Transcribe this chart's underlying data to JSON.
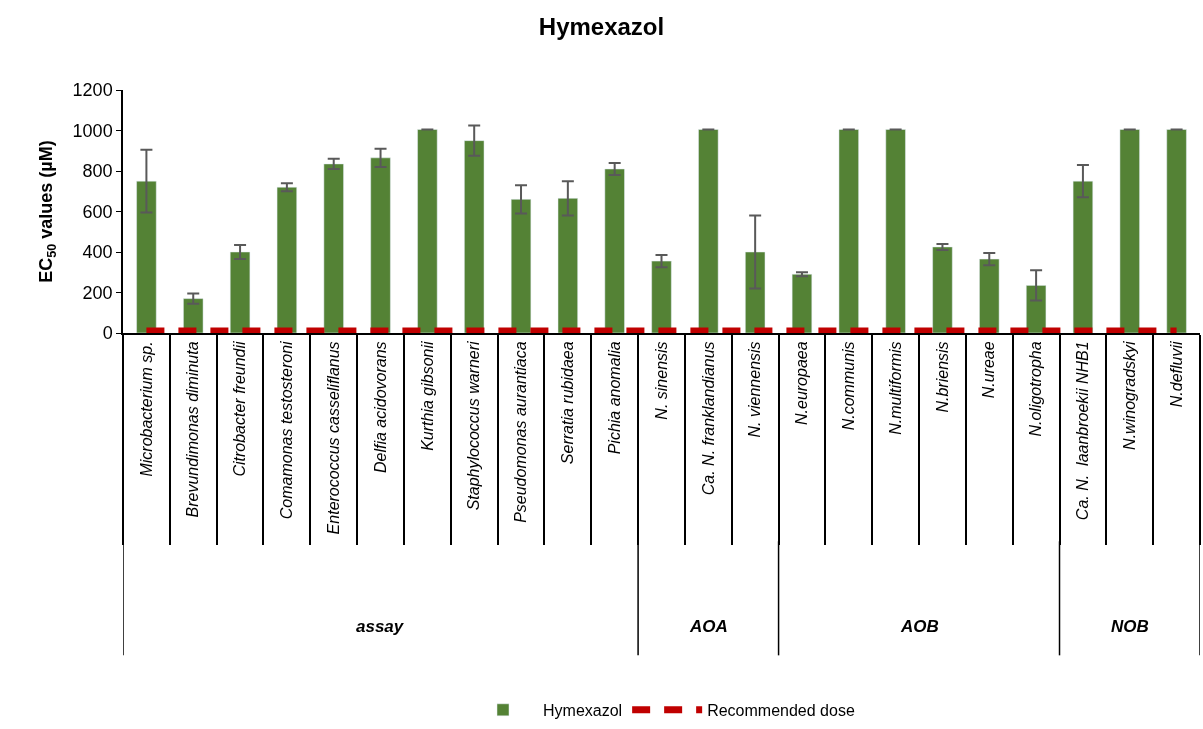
{
  "chart_data": {
    "type": "bar",
    "title": "Hymexazol",
    "ylabel": "EC$_{50}$ values (µM)",
    "categories": [
      "Microbacterium sp.",
      "Brevundimonas diminuta",
      "Citrobacter freundii",
      "Comamonas testosteroni",
      "Enterococcus casseliflanus",
      "Delfia acidovorans",
      "Kurthia gibsonii",
      "Staphylococcus warneri",
      "Pseudomonas aurantiaca",
      "Serratia rubidaea",
      "Pichia anomalia",
      "N. sinensis",
      "Ca. N. franklandianus",
      "N. viennensis",
      "N.europaea",
      "N.communis",
      "N.multiformis",
      "N.briensis",
      "N.ureae",
      "N.oligotropha",
      "Ca. N.  laanbroekii NHB1",
      "N.winogradskyi",
      "N.defluvii"
    ],
    "series": [
      {
        "name": "Hymexazol",
        "color": "#548235",
        "values": [
          750,
          170,
          400,
          720,
          835,
          865,
          1005,
          950,
          660,
          665,
          810,
          355,
          1005,
          400,
          290,
          1005,
          1005,
          425,
          365,
          235,
          750,
          1005,
          1005
        ],
        "errors": [
          155,
          25,
          35,
          20,
          25,
          45,
          0,
          75,
          70,
          85,
          30,
          30,
          0,
          180,
          10,
          0,
          0,
          15,
          30,
          75,
          80,
          0,
          0
        ]
      },
      {
        "name": "Recommended dose",
        "type": "line",
        "color": "#c00000",
        "line_style": "dashed",
        "values": [
          10,
          10,
          10,
          10,
          10,
          10,
          10,
          10,
          10,
          10,
          10,
          10,
          10,
          10,
          10,
          10,
          10,
          10,
          10,
          10,
          10,
          10,
          10
        ]
      }
    ],
    "annotations": [
      "assay",
      "AOA",
      "AOB",
      "NOB"
    ],
    "ylim": [
      0,
      1200
    ],
    "yticks": [
      0,
      200,
      400,
      600,
      800,
      1000,
      1200
    ],
    "legend": "bottom"
  }
}
